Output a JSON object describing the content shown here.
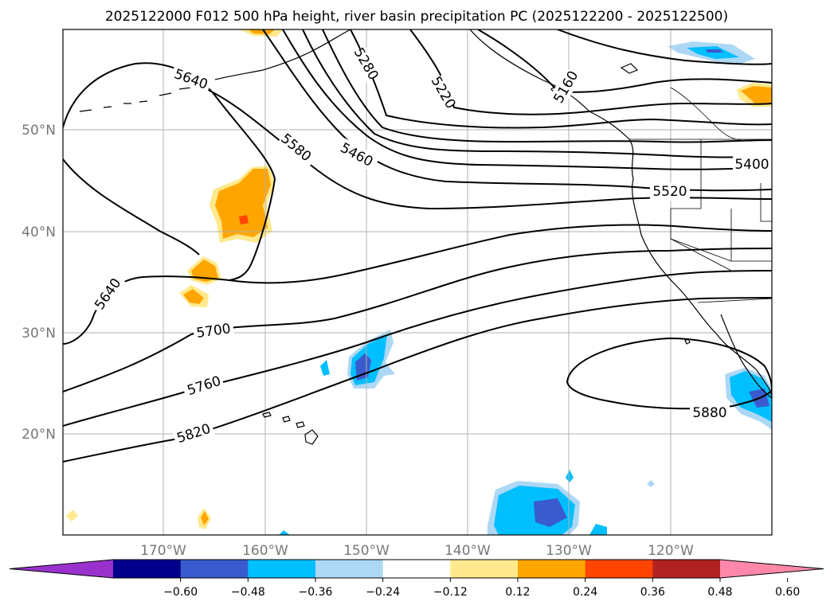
{
  "title": "2025122000 F012 500 hPa height, river basin precipitation PC (2025122200 - 2025122500)",
  "lat_labels": [
    "50°N",
    "40°N",
    "30°N",
    "20°N"
  ],
  "lon_labels": [
    "170°W",
    "160°W",
    "150°W",
    "140°W",
    "130°W",
    "120°W"
  ],
  "contour_labels": [
    "5220",
    "5280",
    "5400",
    "5460",
    "5520",
    "5580",
    "5640",
    "5640",
    "5700",
    "5760",
    "5820",
    "5880",
    "5160"
  ],
  "colorbar": {
    "ticks": [
      "−0.60",
      "−0.48",
      "−0.36",
      "−0.24",
      "−0.12",
      "0.12",
      "0.24",
      "0.36",
      "0.48",
      "0.60"
    ],
    "colors": [
      "#9932cc",
      "#00008b",
      "#3a5bcd",
      "#00bfff",
      "#add8f5",
      "#ffffff",
      "#ffe98c",
      "#ffa500",
      "#ff4500",
      "#b22222",
      "#ff88aa"
    ]
  },
  "colors": {
    "neg_light": "#add8f5",
    "neg_mid": "#00bfff",
    "neg_dark": "#3a5bcd",
    "pos_light": "#ffe98c",
    "pos_mid": "#ffa500",
    "pos_dark": "#ff4500"
  }
}
